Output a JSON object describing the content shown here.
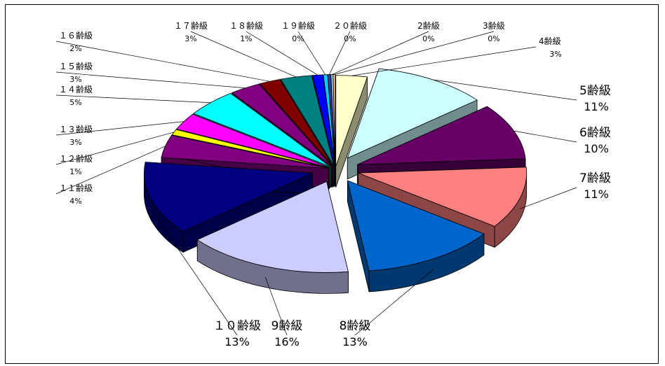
{
  "chart_data": {
    "type": "pie",
    "style": "exploded-3d",
    "title": "",
    "slices": [
      {
        "name": "4齢級",
        "pct_label": "3%",
        "value": 3,
        "color": "#FFFFCC"
      },
      {
        "name": "5齢級",
        "pct_label": "11%",
        "value": 11,
        "color": "#CCFFFF"
      },
      {
        "name": "6齢級",
        "pct_label": "10%",
        "value": 10,
        "color": "#660066"
      },
      {
        "name": "7齢級",
        "pct_label": "11%",
        "value": 11,
        "color": "#FF8080"
      },
      {
        "name": "8齢級",
        "pct_label": "13%",
        "value": 13,
        "color": "#0066CC"
      },
      {
        "name": "9齢級",
        "pct_label": "16%",
        "value": 16,
        "color": "#CCCCFF"
      },
      {
        "name": "１０齢級",
        "pct_label": "13%",
        "value": 13,
        "color": "#000080"
      },
      {
        "name": "１１齢級",
        "pct_label": "4%",
        "value": 4,
        "color": "#800080"
      },
      {
        "name": "１２齢級",
        "pct_label": "1%",
        "value": 1,
        "color": "#FFFF00"
      },
      {
        "name": "１３齢級",
        "pct_label": "3%",
        "value": 3,
        "color": "#FF00FF"
      },
      {
        "name": "１４齢級",
        "pct_label": "5%",
        "value": 5,
        "color": "#00FFFF"
      },
      {
        "name": "１５齢級",
        "pct_label": "3%",
        "value": 3,
        "color": "#800080"
      },
      {
        "name": "１６齢級",
        "pct_label": "2%",
        "value": 2,
        "color": "#800000"
      },
      {
        "name": "１７齢級",
        "pct_label": "3%",
        "value": 3,
        "color": "#008080"
      },
      {
        "name": "１８齢級",
        "pct_label": "1%",
        "value": 1,
        "color": "#0000FF"
      },
      {
        "name": "１９齢級",
        "pct_label": "0%",
        "value": 0.4,
        "color": "#00CCFF"
      },
      {
        "name": "２０齢級",
        "pct_label": "0%",
        "value": 0.3,
        "color": "#333399"
      },
      {
        "name": "2齢級",
        "pct_label": "0%",
        "value": 0.2,
        "color": "#99CCFF"
      },
      {
        "name": "3齢級",
        "pct_label": "0%",
        "value": 0.2,
        "color": "#FFCC99"
      }
    ]
  }
}
